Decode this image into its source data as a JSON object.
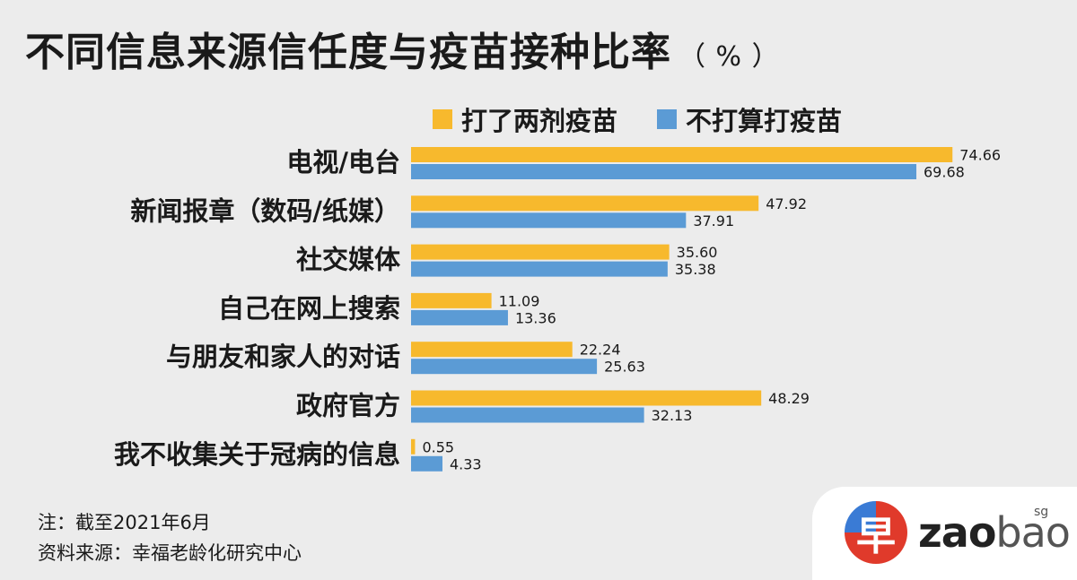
{
  "title": "不同信息来源信任度与疫苗接种比率",
  "title_unit": "（ % ）",
  "chart_data": {
    "type": "bar",
    "orientation": "horizontal",
    "title": "不同信息来源信任度与疫苗接种比率（%）",
    "categories": [
      "电视/电台",
      "新闻报章（数码/纸媒）",
      "社交媒体",
      "自己在网上搜索",
      "与朋友和家人的对话",
      "政府官方",
      "我不收集关于冠病的信息"
    ],
    "series": [
      {
        "name": "打了两剂疫苗",
        "color": "#f7b92d",
        "values": [
          74.66,
          47.92,
          35.6,
          11.09,
          22.24,
          48.29,
          0.55
        ],
        "labels": [
          "74.66",
          "47.92",
          "35.60",
          "11.09",
          "22.24",
          "48.29",
          "0.55"
        ]
      },
      {
        "name": "不打算打疫苗",
        "color": "#5b9bd5",
        "values": [
          69.68,
          37.91,
          35.38,
          13.36,
          25.63,
          32.13,
          4.33
        ],
        "labels": [
          "69.68",
          "37.91",
          "35.38",
          "13.36",
          "25.63",
          "32.13",
          "4.33"
        ]
      }
    ],
    "xlim": [
      0,
      75
    ],
    "grid": false,
    "legend_position": "top"
  },
  "notes": {
    "note": "注：截至2021年6月",
    "source": "资料来源：幸福老龄化研究中心"
  },
  "logo": {
    "glyph": "早",
    "text_bold": "zao",
    "text_light": "bao",
    "suffix": "sg",
    "colors": {
      "red": "#e03a2b",
      "blue": "#3a7bd5"
    }
  }
}
